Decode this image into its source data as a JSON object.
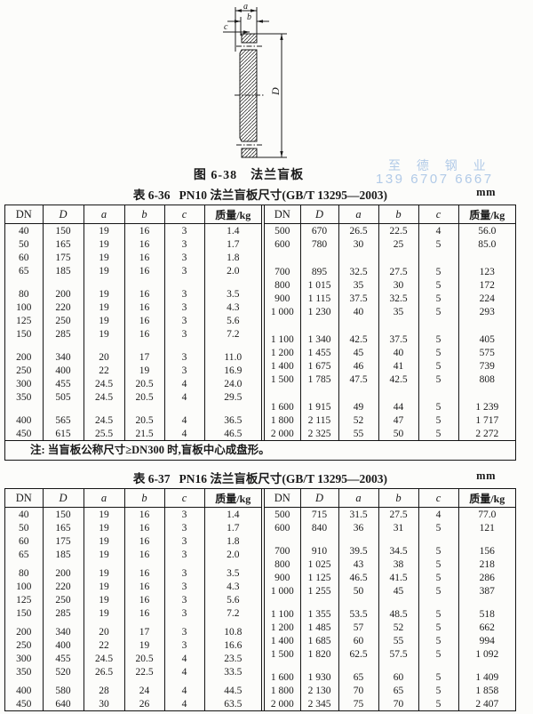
{
  "figure": {
    "caption": "图 6-38　法兰盲板",
    "labels": {
      "a": "a",
      "b": "b",
      "c": "c",
      "D": "D"
    }
  },
  "watermark": {
    "line1": "至 德 钢 业",
    "line2": "139 6707 6667",
    "color": "#a9c5e6"
  },
  "tables": [
    {
      "title_prefix": "表 6-36",
      "title": "PN10 法兰盲板尺寸(GB/T 13295—2003)",
      "unit": "mm",
      "headers": [
        "DN",
        "D",
        "a",
        "b",
        "c",
        "质量/kg"
      ],
      "left_groups": [
        [
          [
            "40",
            "150",
            "19",
            "16",
            "3",
            "1.4"
          ],
          [
            "50",
            "165",
            "19",
            "16",
            "3",
            "1.7"
          ],
          [
            "60",
            "175",
            "19",
            "16",
            "3",
            "1.8"
          ],
          [
            "65",
            "185",
            "19",
            "16",
            "3",
            "2.0"
          ]
        ],
        [
          [
            "80",
            "200",
            "19",
            "16",
            "3",
            "3.5"
          ],
          [
            "100",
            "220",
            "19",
            "16",
            "3",
            "4.3"
          ],
          [
            "125",
            "250",
            "19",
            "16",
            "3",
            "5.6"
          ],
          [
            "150",
            "285",
            "19",
            "16",
            "3",
            "7.2"
          ]
        ],
        [
          [
            "200",
            "340",
            "20",
            "17",
            "3",
            "11.0"
          ],
          [
            "250",
            "400",
            "22",
            "19",
            "3",
            "16.9"
          ],
          [
            "300",
            "455",
            "24.5",
            "20.5",
            "4",
            "24.0"
          ],
          [
            "350",
            "505",
            "24.5",
            "20.5",
            "4",
            "29.5"
          ]
        ],
        [
          [
            "400",
            "565",
            "24.5",
            "20.5",
            "4",
            "36.5"
          ],
          [
            "450",
            "615",
            "25.5",
            "21.5",
            "4",
            "46.5"
          ]
        ]
      ],
      "right_groups": [
        [
          [
            "500",
            "670",
            "26.5",
            "22.5",
            "4",
            "56.0"
          ],
          [
            "600",
            "780",
            "30",
            "25",
            "5",
            "85.0"
          ]
        ],
        [
          [
            "700",
            "895",
            "32.5",
            "27.5",
            "5",
            "123"
          ],
          [
            "800",
            "1 015",
            "35",
            "30",
            "5",
            "172"
          ],
          [
            "900",
            "1 115",
            "37.5",
            "32.5",
            "5",
            "224"
          ],
          [
            "1 000",
            "1 230",
            "40",
            "35",
            "5",
            "293"
          ]
        ],
        [
          [
            "1 100",
            "1 340",
            "42.5",
            "37.5",
            "5",
            "405"
          ],
          [
            "1 200",
            "1 455",
            "45",
            "40",
            "5",
            "575"
          ],
          [
            "1 400",
            "1 675",
            "46",
            "41",
            "5",
            "739"
          ],
          [
            "1 500",
            "1 785",
            "47.5",
            "42.5",
            "5",
            "808"
          ]
        ],
        [
          [
            "1 600",
            "1 915",
            "49",
            "44",
            "5",
            "1 239"
          ],
          [
            "1 800",
            "2 115",
            "52",
            "47",
            "5",
            "1 717"
          ],
          [
            "2 000",
            "2 325",
            "55",
            "50",
            "5",
            "2 272"
          ]
        ]
      ],
      "note": "注: 当盲板公称尺寸≥DN300 时,盲板中心成盘形。"
    },
    {
      "title_prefix": "表 6-37",
      "title": "PN16 法兰盲板尺寸(GB/T 13295—2003)",
      "unit": "mm",
      "headers": [
        "DN",
        "D",
        "a",
        "b",
        "c",
        "质量/kg"
      ],
      "left_groups": [
        [
          [
            "40",
            "150",
            "19",
            "16",
            "3",
            "1.4"
          ],
          [
            "50",
            "165",
            "19",
            "16",
            "3",
            "1.7"
          ],
          [
            "60",
            "175",
            "19",
            "16",
            "3",
            "1.8"
          ],
          [
            "65",
            "185",
            "19",
            "16",
            "3",
            "2.0"
          ]
        ],
        [
          [
            "80",
            "200",
            "19",
            "16",
            "3",
            "3.5"
          ],
          [
            "100",
            "220",
            "19",
            "16",
            "3",
            "4.3"
          ],
          [
            "125",
            "250",
            "19",
            "16",
            "3",
            "5.6"
          ],
          [
            "150",
            "285",
            "19",
            "16",
            "3",
            "7.2"
          ]
        ],
        [
          [
            "200",
            "340",
            "20",
            "17",
            "3",
            "10.8"
          ],
          [
            "250",
            "400",
            "22",
            "19",
            "3",
            "16.6"
          ],
          [
            "300",
            "455",
            "24.5",
            "20.5",
            "4",
            "23.5"
          ],
          [
            "350",
            "520",
            "26.5",
            "22.5",
            "4",
            "33.5"
          ]
        ],
        [
          [
            "400",
            "580",
            "28",
            "24",
            "4",
            "44.5"
          ],
          [
            "450",
            "640",
            "30",
            "26",
            "4",
            "63.5"
          ]
        ]
      ],
      "right_groups": [
        [
          [
            "500",
            "715",
            "31.5",
            "27.5",
            "4",
            "77.0"
          ],
          [
            "600",
            "840",
            "36",
            "31",
            "5",
            "121"
          ]
        ],
        [
          [
            "700",
            "910",
            "39.5",
            "34.5",
            "5",
            "156"
          ],
          [
            "800",
            "1 025",
            "43",
            "38",
            "5",
            "218"
          ],
          [
            "900",
            "1 125",
            "46.5",
            "41.5",
            "5",
            "286"
          ],
          [
            "1 000",
            "1 255",
            "50",
            "45",
            "5",
            "387"
          ]
        ],
        [
          [
            "1 100",
            "1 355",
            "53.5",
            "48.5",
            "5",
            "518"
          ],
          [
            "1 200",
            "1 485",
            "57",
            "52",
            "5",
            "662"
          ],
          [
            "1 400",
            "1 685",
            "60",
            "55",
            "5",
            "994"
          ],
          [
            "1 500",
            "1 820",
            "62.5",
            "57.5",
            "5",
            "1 092"
          ]
        ],
        [
          [
            "1 600",
            "1 930",
            "65",
            "60",
            "5",
            "1 409"
          ],
          [
            "1 800",
            "2 130",
            "70",
            "65",
            "5",
            "1 858"
          ],
          [
            "2 000",
            "2 345",
            "75",
            "70",
            "5",
            "2 407"
          ]
        ]
      ],
      "note": null
    }
  ]
}
